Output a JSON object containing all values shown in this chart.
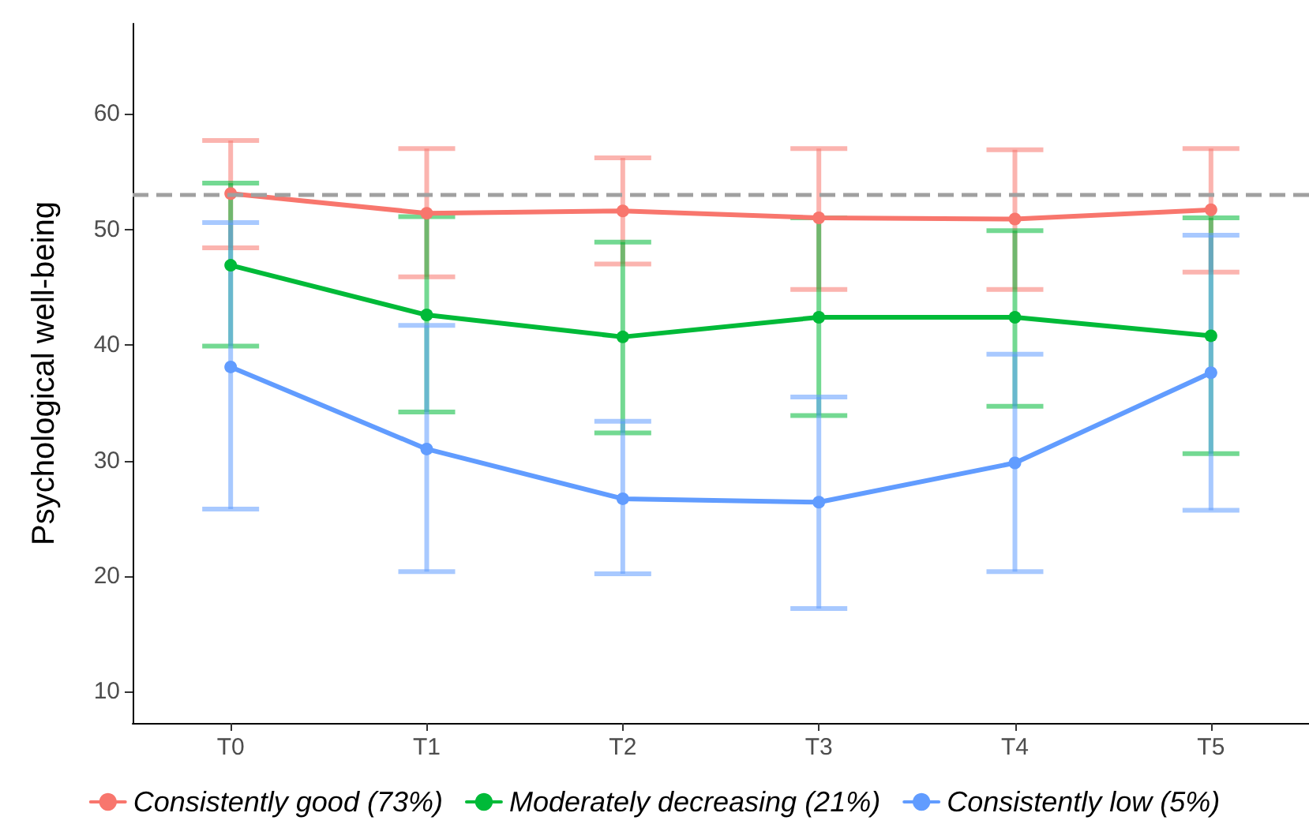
{
  "chart_data": {
    "type": "line",
    "ylabel": "Psychological well-being",
    "categories": [
      "T0",
      "T1",
      "T2",
      "T3",
      "T4",
      "T5"
    ],
    "series": [
      {
        "name": "Consistently good (73%)",
        "color": "#f8766d",
        "values": [
          53.1,
          51.4,
          51.6,
          51.0,
          50.9,
          51.7
        ],
        "errors": [
          [
            48.4,
            57.7
          ],
          [
            45.9,
            57.0
          ],
          [
            47.0,
            56.2
          ],
          [
            44.8,
            57.0
          ],
          [
            44.8,
            56.9
          ],
          [
            46.3,
            57.0
          ]
        ]
      },
      {
        "name": "Moderately decreasing (21%)",
        "color": "#00ba38",
        "values": [
          46.9,
          42.6,
          40.7,
          42.4,
          42.4,
          40.8
        ],
        "errors": [
          [
            39.9,
            54.0
          ],
          [
            34.2,
            51.1
          ],
          [
            32.4,
            48.9
          ],
          [
            33.9,
            51.0
          ],
          [
            34.7,
            49.9
          ],
          [
            30.6,
            51.0
          ]
        ]
      },
      {
        "name": "Consistently low (5%)",
        "color": "#619cff",
        "values": [
          38.1,
          31.0,
          26.7,
          26.4,
          29.8,
          37.6
        ],
        "errors": [
          [
            25.8,
            50.6
          ],
          [
            20.4,
            41.7
          ],
          [
            20.2,
            33.4
          ],
          [
            17.2,
            35.5
          ],
          [
            20.4,
            39.2
          ],
          [
            25.7,
            49.5
          ]
        ]
      }
    ],
    "ylim": [
      7.3,
      67.8
    ],
    "yticks": [
      10,
      20,
      30,
      40,
      50,
      60
    ],
    "ref_lines": [
      {
        "axis": "y",
        "value": 53,
        "color": "#a0a0a0",
        "line_style": "dashed"
      }
    ],
    "grid": false,
    "legend": "bottom",
    "marker": "circle",
    "line_style": "solid"
  }
}
